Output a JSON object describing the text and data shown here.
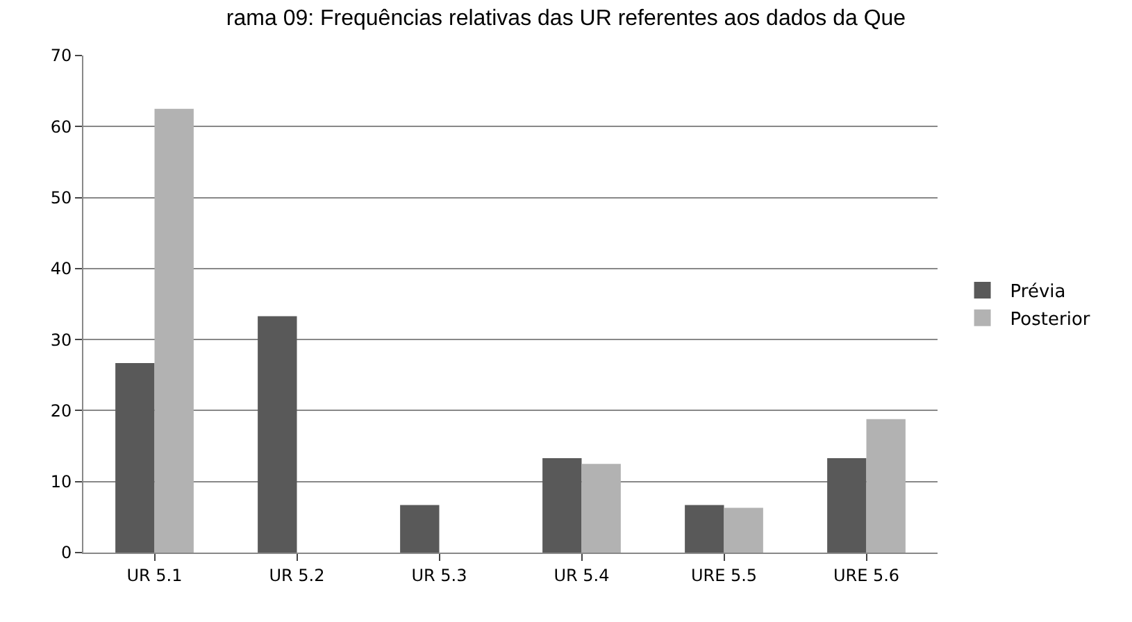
{
  "chart_data": {
    "type": "bar",
    "title": "rama 09: Frequências relativas das UR referentes aos dados da Que",
    "categories": [
      "UR 5.1",
      "UR 5.2",
      "UR 5.3",
      "UR 5.4",
      "URE 5.5",
      "URE 5.6"
    ],
    "series": [
      {
        "name": "Prévia",
        "color": "#595959",
        "values": [
          26.7,
          33.3,
          6.7,
          13.3,
          6.7,
          13.3
        ]
      },
      {
        "name": "Posterior",
        "color": "#b2b2b2",
        "values": [
          62.5,
          0,
          0,
          12.5,
          6.3,
          18.8
        ]
      }
    ],
    "ylim": [
      0,
      70
    ],
    "yticks": [
      0,
      10,
      20,
      30,
      40,
      50,
      60,
      70
    ],
    "grid": "y",
    "legend": "right"
  }
}
